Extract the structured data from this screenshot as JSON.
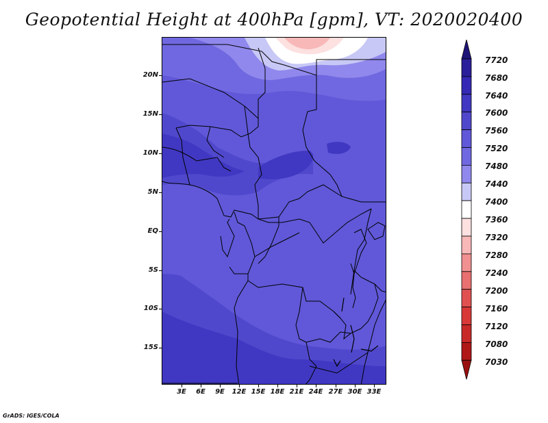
{
  "title": "Geopotential Height at 400hPa [gpm], VT: 2020020400",
  "credit": "GrADS: IGES/COLA",
  "map": {
    "lat_ticks": [
      "20N",
      "15N",
      "10N",
      "5N",
      "EQ",
      "5S",
      "10S",
      "15S"
    ],
    "lon_ticks": [
      "3E",
      "6E",
      "9E",
      "12E",
      "15E",
      "18E",
      "21E",
      "24E",
      "27E",
      "30E",
      "33E"
    ]
  },
  "colorbar": {
    "levels": [
      "7720",
      "7680",
      "7640",
      "7600",
      "7560",
      "7520",
      "7480",
      "7440",
      "7400",
      "7360",
      "7320",
      "7280",
      "7240",
      "7200",
      "7160",
      "7120",
      "7080",
      "7030"
    ],
    "colors": [
      "#1e1478",
      "#2a1e9a",
      "#3428b4",
      "#4038c2",
      "#5048cc",
      "#6058d8",
      "#7068e0",
      "#9088ec",
      "#c8c8f6",
      "#ffffff",
      "#fde0e0",
      "#f8b8b8",
      "#f09090",
      "#e87070",
      "#e05050",
      "#d83838",
      "#c82828",
      "#b01818",
      "#9a1010"
    ]
  },
  "fill_colors": {
    "deep": "#4038c2",
    "mid": "#5048cc",
    "light": "#6058d8",
    "pale": "#7068e0",
    "lilac": "#9088ec",
    "white": "#ffffff",
    "pink": "#fde0e0",
    "rose": "#f8b8b8"
  }
}
